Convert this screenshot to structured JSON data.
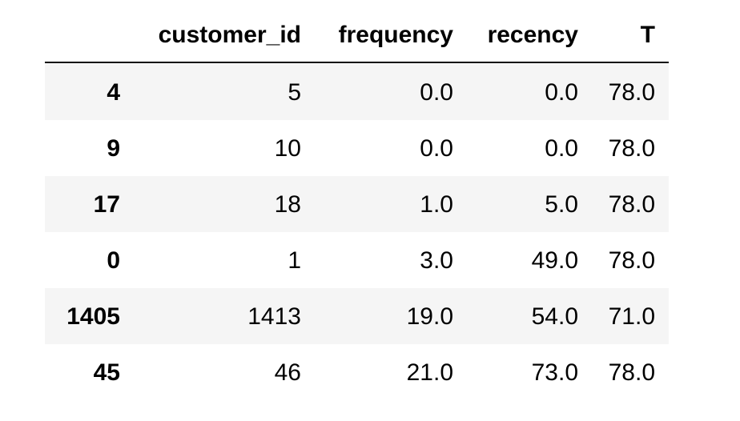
{
  "table": {
    "columns": [
      "customer_id",
      "frequency",
      "recency",
      "T"
    ],
    "rows": [
      {
        "index": "4",
        "cells": [
          "5",
          "0.0",
          "0.0",
          "78.0"
        ]
      },
      {
        "index": "9",
        "cells": [
          "10",
          "0.0",
          "0.0",
          "78.0"
        ]
      },
      {
        "index": "17",
        "cells": [
          "18",
          "1.0",
          "5.0",
          "78.0"
        ]
      },
      {
        "index": "0",
        "cells": [
          "1",
          "3.0",
          "49.0",
          "78.0"
        ]
      },
      {
        "index": "1405",
        "cells": [
          "1413",
          "19.0",
          "54.0",
          "71.0"
        ]
      },
      {
        "index": "45",
        "cells": [
          "46",
          "21.0",
          "73.0",
          "78.0"
        ]
      }
    ]
  }
}
